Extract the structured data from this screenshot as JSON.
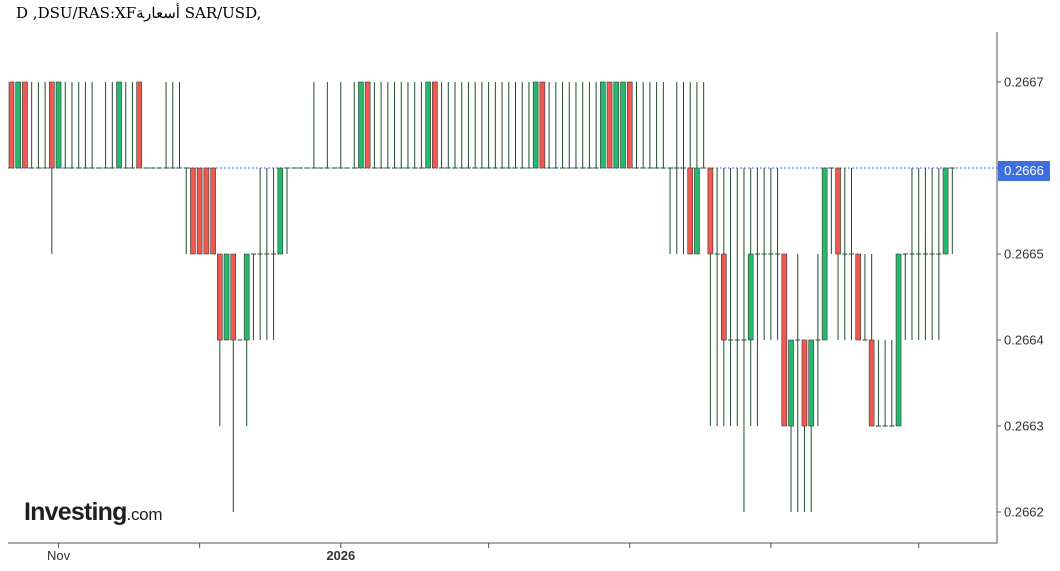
{
  "title": "D ,DSU/RAS:XFأسعار‍ة SAR/USD,",
  "logo": {
    "brand": "Investing",
    "suffix": ".com"
  },
  "current_price": "0.2666",
  "colors": {
    "up": "#26b86b",
    "down": "#ee5a4f",
    "wick": "#1f4d2e",
    "price_line": "#3d6fe0",
    "axis": "#555555"
  },
  "chart_data": {
    "type": "candlestick",
    "symbol": "SAR/USD",
    "interval": "D",
    "ylim": [
      0.26615,
      0.26675
    ],
    "yticks": [
      0.2662,
      0.2663,
      0.2664,
      0.2665,
      0.2666,
      0.2667
    ],
    "ytick_labels": [
      "0.2662",
      "0.2663",
      "0.2664",
      "0.2665",
      "0.2666",
      "0.2667"
    ],
    "xtick_labels": [
      {
        "index": 7,
        "label": "Nov"
      },
      {
        "index": 28,
        "label": ""
      },
      {
        "index": 49,
        "label": "2026"
      },
      {
        "index": 71,
        "label": ""
      },
      {
        "index": 92,
        "label": ""
      },
      {
        "index": 113,
        "label": ""
      },
      {
        "index": 135,
        "label": ""
      }
    ],
    "candles": [
      [
        0.2667,
        0.2667,
        0.2666,
        0.2666
      ],
      [
        0.2666,
        0.2667,
        0.2666,
        0.2667
      ],
      [
        0.2667,
        0.2667,
        0.2666,
        0.2666
      ],
      [
        0.2666,
        0.2667,
        0.2666,
        0.2666
      ],
      [
        0.2666,
        0.2667,
        0.2666,
        0.2666
      ],
      [
        0.2666,
        0.2667,
        0.2666,
        0.2666
      ],
      [
        0.2667,
        0.2667,
        0.2665,
        0.2666
      ],
      [
        0.2666,
        0.2667,
        0.2666,
        0.2667
      ],
      [
        0.2666,
        0.2667,
        0.2666,
        0.2666
      ],
      [
        0.2666,
        0.2667,
        0.2666,
        0.2666
      ],
      [
        0.2666,
        0.2667,
        0.2666,
        0.2666
      ],
      [
        0.2666,
        0.2667,
        0.2666,
        0.2666
      ],
      [
        0.2666,
        0.2667,
        0.2666,
        0.2666
      ],
      [
        0.2666,
        0.2666,
        0.2666,
        0.2666
      ],
      [
        0.2666,
        0.2667,
        0.2666,
        0.2666
      ],
      [
        0.2666,
        0.2667,
        0.2666,
        0.2666
      ],
      [
        0.2666,
        0.2667,
        0.2666,
        0.2667
      ],
      [
        0.2666,
        0.2667,
        0.2666,
        0.2666
      ],
      [
        0.2666,
        0.2667,
        0.2666,
        0.2666
      ],
      [
        0.2667,
        0.2667,
        0.2666,
        0.2666
      ],
      [
        0.2666,
        0.2666,
        0.2666,
        0.2666
      ],
      [
        0.2666,
        0.2666,
        0.2666,
        0.2666
      ],
      [
        0.2666,
        0.2666,
        0.2666,
        0.2666
      ],
      [
        0.2666,
        0.2667,
        0.2666,
        0.2666
      ],
      [
        0.2666,
        0.2667,
        0.2666,
        0.2666
      ],
      [
        0.2666,
        0.2667,
        0.2666,
        0.2666
      ],
      [
        0.2666,
        0.2666,
        0.2665,
        0.2666
      ],
      [
        0.2666,
        0.2666,
        0.2665,
        0.2665
      ],
      [
        0.2666,
        0.2666,
        0.2665,
        0.2665
      ],
      [
        0.2666,
        0.2666,
        0.2665,
        0.2665
      ],
      [
        0.2666,
        0.2666,
        0.2665,
        0.2665
      ],
      [
        0.2665,
        0.2665,
        0.2663,
        0.2664
      ],
      [
        0.2664,
        0.2665,
        0.2664,
        0.2665
      ],
      [
        0.2665,
        0.2665,
        0.2662,
        0.2664
      ],
      [
        0.2664,
        0.2664,
        0.2664,
        0.2664
      ],
      [
        0.2664,
        0.2665,
        0.2663,
        0.2665
      ],
      [
        0.2665,
        0.2665,
        0.2664,
        0.2665
      ],
      [
        0.2665,
        0.2666,
        0.2664,
        0.2665
      ],
      [
        0.2665,
        0.2666,
        0.2664,
        0.2665
      ],
      [
        0.2665,
        0.2666,
        0.2664,
        0.2665
      ],
      [
        0.2665,
        0.2666,
        0.2665,
        0.2666
      ],
      [
        0.2666,
        0.2666,
        0.2665,
        0.2666
      ],
      [
        0.2666,
        0.2666,
        0.2666,
        0.2666
      ],
      [
        0.2666,
        0.2666,
        0.2666,
        0.2666
      ],
      [
        0.2666,
        0.2666,
        0.2666,
        0.2666
      ],
      [
        0.2666,
        0.2667,
        0.2666,
        0.2666
      ],
      [
        0.2666,
        0.2666,
        0.2666,
        0.2666
      ],
      [
        0.2666,
        0.2667,
        0.2666,
        0.2666
      ],
      [
        0.2666,
        0.2666,
        0.2666,
        0.2666
      ],
      [
        0.2666,
        0.2667,
        0.2666,
        0.2666
      ],
      [
        0.2666,
        0.2666,
        0.2666,
        0.2666
      ],
      [
        0.2666,
        0.2667,
        0.2666,
        0.2666
      ],
      [
        0.2666,
        0.2667,
        0.2666,
        0.2667
      ],
      [
        0.2667,
        0.2667,
        0.2666,
        0.2666
      ],
      [
        0.2666,
        0.2667,
        0.2666,
        0.2666
      ],
      [
        0.2666,
        0.2667,
        0.2666,
        0.2666
      ],
      [
        0.2666,
        0.2667,
        0.2666,
        0.2666
      ],
      [
        0.2666,
        0.2667,
        0.2666,
        0.2666
      ],
      [
        0.2666,
        0.2667,
        0.2666,
        0.2666
      ],
      [
        0.2666,
        0.2667,
        0.2666,
        0.2666
      ],
      [
        0.2666,
        0.2667,
        0.2666,
        0.2666
      ],
      [
        0.2666,
        0.2667,
        0.2666,
        0.2666
      ],
      [
        0.2666,
        0.2667,
        0.2666,
        0.2667
      ],
      [
        0.2667,
        0.2667,
        0.2666,
        0.2666
      ],
      [
        0.2666,
        0.2667,
        0.2666,
        0.2666
      ],
      [
        0.2666,
        0.2667,
        0.2666,
        0.2666
      ],
      [
        0.2666,
        0.2667,
        0.2666,
        0.2666
      ],
      [
        0.2666,
        0.2667,
        0.2666,
        0.2666
      ],
      [
        0.2666,
        0.2667,
        0.2666,
        0.2666
      ],
      [
        0.2666,
        0.2667,
        0.2666,
        0.2666
      ],
      [
        0.2666,
        0.2667,
        0.2666,
        0.2666
      ],
      [
        0.2666,
        0.2667,
        0.2666,
        0.2666
      ],
      [
        0.2666,
        0.2667,
        0.2666,
        0.2666
      ],
      [
        0.2666,
        0.2667,
        0.2666,
        0.2666
      ],
      [
        0.2666,
        0.2667,
        0.2666,
        0.2666
      ],
      [
        0.2666,
        0.2667,
        0.2666,
        0.2666
      ],
      [
        0.2666,
        0.2667,
        0.2666,
        0.2666
      ],
      [
        0.2666,
        0.2667,
        0.2666,
        0.2666
      ],
      [
        0.2666,
        0.2667,
        0.2666,
        0.2667
      ],
      [
        0.2667,
        0.2667,
        0.2666,
        0.2666
      ],
      [
        0.2666,
        0.2667,
        0.2666,
        0.2666
      ],
      [
        0.2666,
        0.2667,
        0.2666,
        0.2666
      ],
      [
        0.2666,
        0.2667,
        0.2666,
        0.2666
      ],
      [
        0.2666,
        0.2667,
        0.2666,
        0.2666
      ],
      [
        0.2666,
        0.2667,
        0.2666,
        0.2666
      ],
      [
        0.2666,
        0.2667,
        0.2666,
        0.2666
      ],
      [
        0.2666,
        0.2667,
        0.2666,
        0.2666
      ],
      [
        0.2666,
        0.2667,
        0.2666,
        0.2666
      ],
      [
        0.2666,
        0.2667,
        0.2666,
        0.2667
      ],
      [
        0.2667,
        0.2667,
        0.2666,
        0.2666
      ],
      [
        0.2666,
        0.2667,
        0.2666,
        0.2667
      ],
      [
        0.2666,
        0.2667,
        0.2666,
        0.2667
      ],
      [
        0.2667,
        0.2667,
        0.2666,
        0.2666
      ],
      [
        0.2666,
        0.2667,
        0.2666,
        0.2666
      ],
      [
        0.2666,
        0.2667,
        0.2666,
        0.2666
      ],
      [
        0.2666,
        0.2667,
        0.2666,
        0.2666
      ],
      [
        0.2666,
        0.2667,
        0.2666,
        0.2666
      ],
      [
        0.2666,
        0.2667,
        0.2666,
        0.2666
      ],
      [
        0.2666,
        0.2666,
        0.2665,
        0.2666
      ],
      [
        0.2666,
        0.2667,
        0.2665,
        0.2666
      ],
      [
        0.2666,
        0.2667,
        0.2665,
        0.2666
      ],
      [
        0.2666,
        0.2667,
        0.2665,
        0.2665
      ],
      [
        0.2665,
        0.2667,
        0.2665,
        0.2666
      ],
      [
        0.2666,
        0.2667,
        0.2666,
        0.2666
      ],
      [
        0.2666,
        0.2666,
        0.2663,
        0.2665
      ],
      [
        0.2665,
        0.2666,
        0.2663,
        0.2665
      ],
      [
        0.2665,
        0.2666,
        0.2663,
        0.2664
      ],
      [
        0.2664,
        0.2666,
        0.2663,
        0.2664
      ],
      [
        0.2664,
        0.2666,
        0.2663,
        0.2664
      ],
      [
        0.2664,
        0.2666,
        0.2662,
        0.2664
      ],
      [
        0.2664,
        0.2666,
        0.2663,
        0.2665
      ],
      [
        0.2665,
        0.2666,
        0.2663,
        0.2665
      ],
      [
        0.2665,
        0.2666,
        0.2664,
        0.2665
      ],
      [
        0.2665,
        0.2666,
        0.2664,
        0.2665
      ],
      [
        0.2665,
        0.2666,
        0.2664,
        0.2665
      ],
      [
        0.2665,
        0.2665,
        0.2663,
        0.2663
      ],
      [
        0.2663,
        0.2664,
        0.2662,
        0.2664
      ],
      [
        0.2664,
        0.2665,
        0.2662,
        0.2664
      ],
      [
        0.2664,
        0.2664,
        0.2662,
        0.2663
      ],
      [
        0.2663,
        0.2664,
        0.2662,
        0.2664
      ],
      [
        0.2664,
        0.2665,
        0.2663,
        0.2664
      ],
      [
        0.2664,
        0.2666,
        0.2664,
        0.2666
      ],
      [
        0.2666,
        0.2666,
        0.2665,
        0.2666
      ],
      [
        0.2666,
        0.2666,
        0.2664,
        0.2665
      ],
      [
        0.2665,
        0.2666,
        0.2664,
        0.2665
      ],
      [
        0.2665,
        0.2666,
        0.2664,
        0.2665
      ],
      [
        0.2665,
        0.2665,
        0.2664,
        0.2664
      ],
      [
        0.2664,
        0.2665,
        0.2664,
        0.2664
      ],
      [
        0.2664,
        0.2665,
        0.2663,
        0.2663
      ],
      [
        0.2663,
        0.2664,
        0.2663,
        0.2663
      ],
      [
        0.2663,
        0.2664,
        0.2663,
        0.2663
      ],
      [
        0.2663,
        0.2664,
        0.2663,
        0.2663
      ],
      [
        0.2663,
        0.2665,
        0.2663,
        0.2665
      ],
      [
        0.2665,
        0.2665,
        0.2664,
        0.2665
      ],
      [
        0.2665,
        0.2666,
        0.2664,
        0.2665
      ],
      [
        0.2665,
        0.2666,
        0.2664,
        0.2665
      ],
      [
        0.2665,
        0.2666,
        0.2664,
        0.2665
      ],
      [
        0.2665,
        0.2666,
        0.2664,
        0.2665
      ],
      [
        0.2665,
        0.2666,
        0.2664,
        0.2665
      ],
      [
        0.2665,
        0.2666,
        0.2665,
        0.2666
      ],
      [
        0.2666,
        0.2666,
        0.2665,
        0.2666
      ]
    ]
  }
}
